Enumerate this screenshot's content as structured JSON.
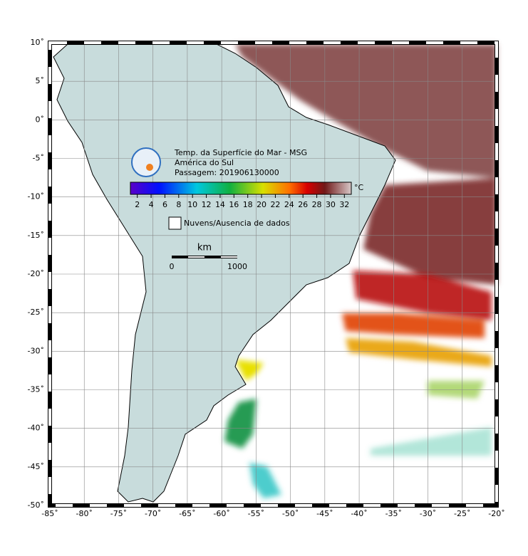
{
  "map": {
    "title": [
      "Temp. da Superfície do Mar - MSG",
      "América do Sul",
      "Passagem: 201906130000"
    ],
    "xlim": [
      -85,
      -20
    ],
    "ylim": [
      -50,
      10
    ],
    "xticks": [
      {
        "value": -85,
        "label": "-85˚"
      },
      {
        "value": -80,
        "label": "-80˚"
      },
      {
        "value": -75,
        "label": "-75˚"
      },
      {
        "value": -70,
        "label": "-70˚"
      },
      {
        "value": -65,
        "label": "-65˚"
      },
      {
        "value": -60,
        "label": "-60˚"
      },
      {
        "value": -55,
        "label": "-55˚"
      },
      {
        "value": -50,
        "label": "-50˚"
      },
      {
        "value": -45,
        "label": "-45˚"
      },
      {
        "value": -40,
        "label": "-40˚"
      },
      {
        "value": -35,
        "label": "-35˚"
      },
      {
        "value": -30,
        "label": "-30˚"
      },
      {
        "value": -25,
        "label": "-25˚"
      },
      {
        "value": -20,
        "label": "-20˚"
      }
    ],
    "yticks": [
      {
        "value": 10,
        "label": "10˚"
      },
      {
        "value": 5,
        "label": "5˚"
      },
      {
        "value": 0,
        "label": "0˚"
      },
      {
        "value": -5,
        "label": "-5˚"
      },
      {
        "value": -10,
        "label": "-10˚"
      },
      {
        "value": -15,
        "label": "-15˚"
      },
      {
        "value": -20,
        "label": "-20˚"
      },
      {
        "value": -25,
        "label": "-25˚"
      },
      {
        "value": -30,
        "label": "-30˚"
      },
      {
        "value": -35,
        "label": "-35˚"
      },
      {
        "value": -40,
        "label": "-40˚"
      },
      {
        "value": -45,
        "label": "-45˚"
      },
      {
        "value": -50,
        "label": "-50˚"
      }
    ],
    "colorbar": {
      "lim": [
        1,
        33
      ],
      "ticks": [
        2,
        4,
        6,
        8,
        10,
        12,
        14,
        16,
        18,
        20,
        22,
        24,
        26,
        28,
        30,
        32
      ],
      "unit": "°C"
    },
    "legend": "Nuvens/Ausencia de dados",
    "scale": {
      "unit": "km",
      "start": "0",
      "end": "1000"
    }
  }
}
